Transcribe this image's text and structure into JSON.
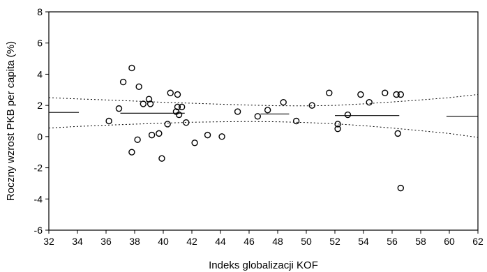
{
  "chart_data": {
    "type": "scatter",
    "title": "",
    "xlabel": "Indeks globalizacji KOF",
    "ylabel": "Roczny wzrost PKB per capita (%)",
    "xlim": [
      32,
      62
    ],
    "ylim": [
      -6,
      8
    ],
    "xticks": [
      32,
      34,
      36,
      38,
      40,
      42,
      44,
      46,
      48,
      50,
      52,
      54,
      56,
      58,
      60,
      62
    ],
    "yticks": [
      -6,
      -4,
      -2,
      0,
      2,
      4,
      6,
      8
    ],
    "grid": false,
    "points": [
      {
        "x": 36.2,
        "y": 1.0
      },
      {
        "x": 36.9,
        "y": 1.8
      },
      {
        "x": 37.2,
        "y": 3.5
      },
      {
        "x": 37.8,
        "y": 4.4
      },
      {
        "x": 37.8,
        "y": -1.0
      },
      {
        "x": 38.2,
        "y": -0.2
      },
      {
        "x": 38.3,
        "y": 3.2
      },
      {
        "x": 38.6,
        "y": 2.1
      },
      {
        "x": 39.0,
        "y": 2.4
      },
      {
        "x": 39.1,
        "y": 2.1
      },
      {
        "x": 39.2,
        "y": 0.1
      },
      {
        "x": 39.7,
        "y": 0.2
      },
      {
        "x": 39.9,
        "y": -1.4
      },
      {
        "x": 40.3,
        "y": 0.8
      },
      {
        "x": 40.5,
        "y": 2.8
      },
      {
        "x": 40.9,
        "y": 1.6
      },
      {
        "x": 41.0,
        "y": 1.9
      },
      {
        "x": 41.0,
        "y": 2.7
      },
      {
        "x": 41.1,
        "y": 1.4
      },
      {
        "x": 41.3,
        "y": 1.9
      },
      {
        "x": 41.6,
        "y": 0.9
      },
      {
        "x": 42.2,
        "y": -0.4
      },
      {
        "x": 43.1,
        "y": 0.1
      },
      {
        "x": 44.1,
        "y": 0.0
      },
      {
        "x": 45.2,
        "y": 1.6
      },
      {
        "x": 46.6,
        "y": 1.3
      },
      {
        "x": 47.3,
        "y": 1.7
      },
      {
        "x": 48.4,
        "y": 2.2
      },
      {
        "x": 49.3,
        "y": 1.0
      },
      {
        "x": 50.4,
        "y": 2.0
      },
      {
        "x": 51.6,
        "y": 2.8
      },
      {
        "x": 52.2,
        "y": 0.5
      },
      {
        "x": 52.2,
        "y": 0.8
      },
      {
        "x": 52.9,
        "y": 1.4
      },
      {
        "x": 53.8,
        "y": 2.7
      },
      {
        "x": 54.4,
        "y": 2.2
      },
      {
        "x": 55.5,
        "y": 2.8
      },
      {
        "x": 56.3,
        "y": 2.7
      },
      {
        "x": 56.6,
        "y": 2.7
      },
      {
        "x": 56.4,
        "y": 0.2
      },
      {
        "x": 56.6,
        "y": -3.3
      }
    ],
    "segment_means": [
      {
        "x1": 32.0,
        "x2": 34.1,
        "y": 1.55
      },
      {
        "x1": 37.0,
        "x2": 41.5,
        "y": 1.5
      },
      {
        "x1": 46.8,
        "x2": 48.8,
        "y": 1.45
      },
      {
        "x1": 52.0,
        "x2": 56.5,
        "y": 1.35
      },
      {
        "x1": 59.8,
        "x2": 62.0,
        "y": 1.3
      }
    ],
    "upper_band": [
      {
        "x": 32,
        "y": 2.5
      },
      {
        "x": 34,
        "y": 2.42
      },
      {
        "x": 36,
        "y": 2.35
      },
      {
        "x": 38,
        "y": 2.28
      },
      {
        "x": 40,
        "y": 2.2
      },
      {
        "x": 42,
        "y": 2.14
      },
      {
        "x": 44,
        "y": 2.08
      },
      {
        "x": 46,
        "y": 2.02
      },
      {
        "x": 48,
        "y": 1.98
      },
      {
        "x": 50,
        "y": 1.97
      },
      {
        "x": 52,
        "y": 2.0
      },
      {
        "x": 54,
        "y": 2.1
      },
      {
        "x": 56,
        "y": 2.22
      },
      {
        "x": 58,
        "y": 2.35
      },
      {
        "x": 60,
        "y": 2.5
      },
      {
        "x": 62,
        "y": 2.7
      }
    ],
    "lower_band": [
      {
        "x": 32,
        "y": 0.55
      },
      {
        "x": 34,
        "y": 0.65
      },
      {
        "x": 36,
        "y": 0.73
      },
      {
        "x": 38,
        "y": 0.8
      },
      {
        "x": 40,
        "y": 0.86
      },
      {
        "x": 42,
        "y": 0.92
      },
      {
        "x": 44,
        "y": 0.95
      },
      {
        "x": 46,
        "y": 0.97
      },
      {
        "x": 48,
        "y": 0.95
      },
      {
        "x": 50,
        "y": 0.9
      },
      {
        "x": 52,
        "y": 0.82
      },
      {
        "x": 54,
        "y": 0.7
      },
      {
        "x": 56,
        "y": 0.55
      },
      {
        "x": 58,
        "y": 0.38
      },
      {
        "x": 60,
        "y": 0.2
      },
      {
        "x": 62,
        "y": -0.05
      }
    ]
  }
}
